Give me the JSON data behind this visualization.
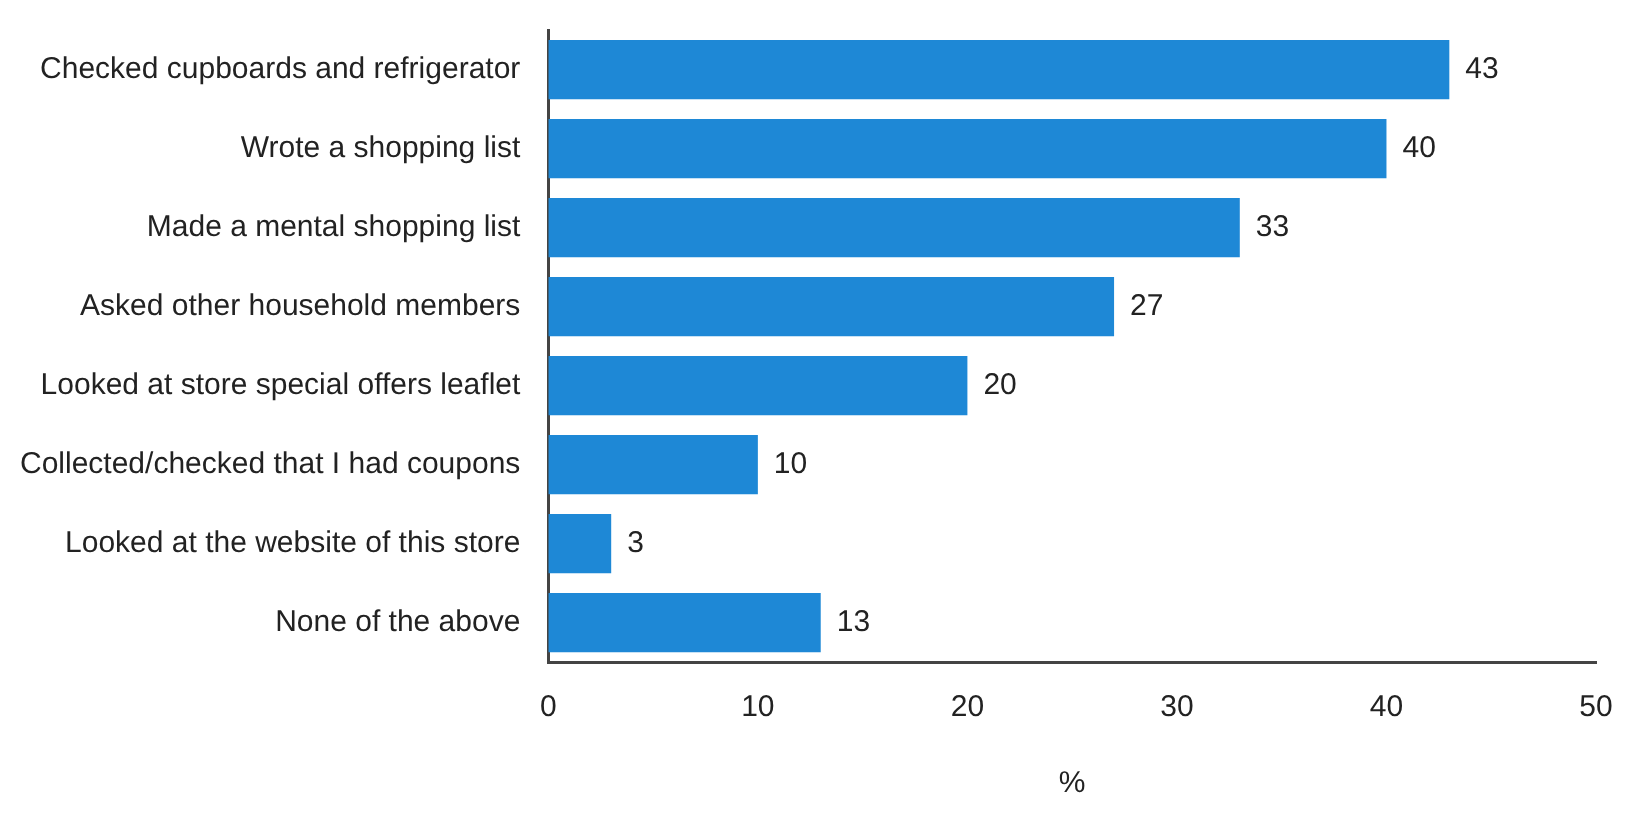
{
  "chart_data": {
    "type": "bar",
    "orientation": "horizontal",
    "xlabel": "%",
    "categories": [
      "Checked cupboards and refrigerator",
      "Wrote a shopping list",
      "Made a mental shopping list",
      "Asked other household members",
      "Looked at store special offers leaflet",
      "Collected/checked that I had coupons",
      "Looked at the website of this store",
      "None of the above"
    ],
    "values": [
      43,
      40,
      33,
      27,
      20,
      10,
      3,
      13
    ],
    "color": "#1e88d6",
    "xlim": [
      0,
      50
    ],
    "xticks": [
      0,
      10,
      20,
      30,
      40,
      50
    ],
    "grid": false,
    "legend": false,
    "data_labels": true
  }
}
